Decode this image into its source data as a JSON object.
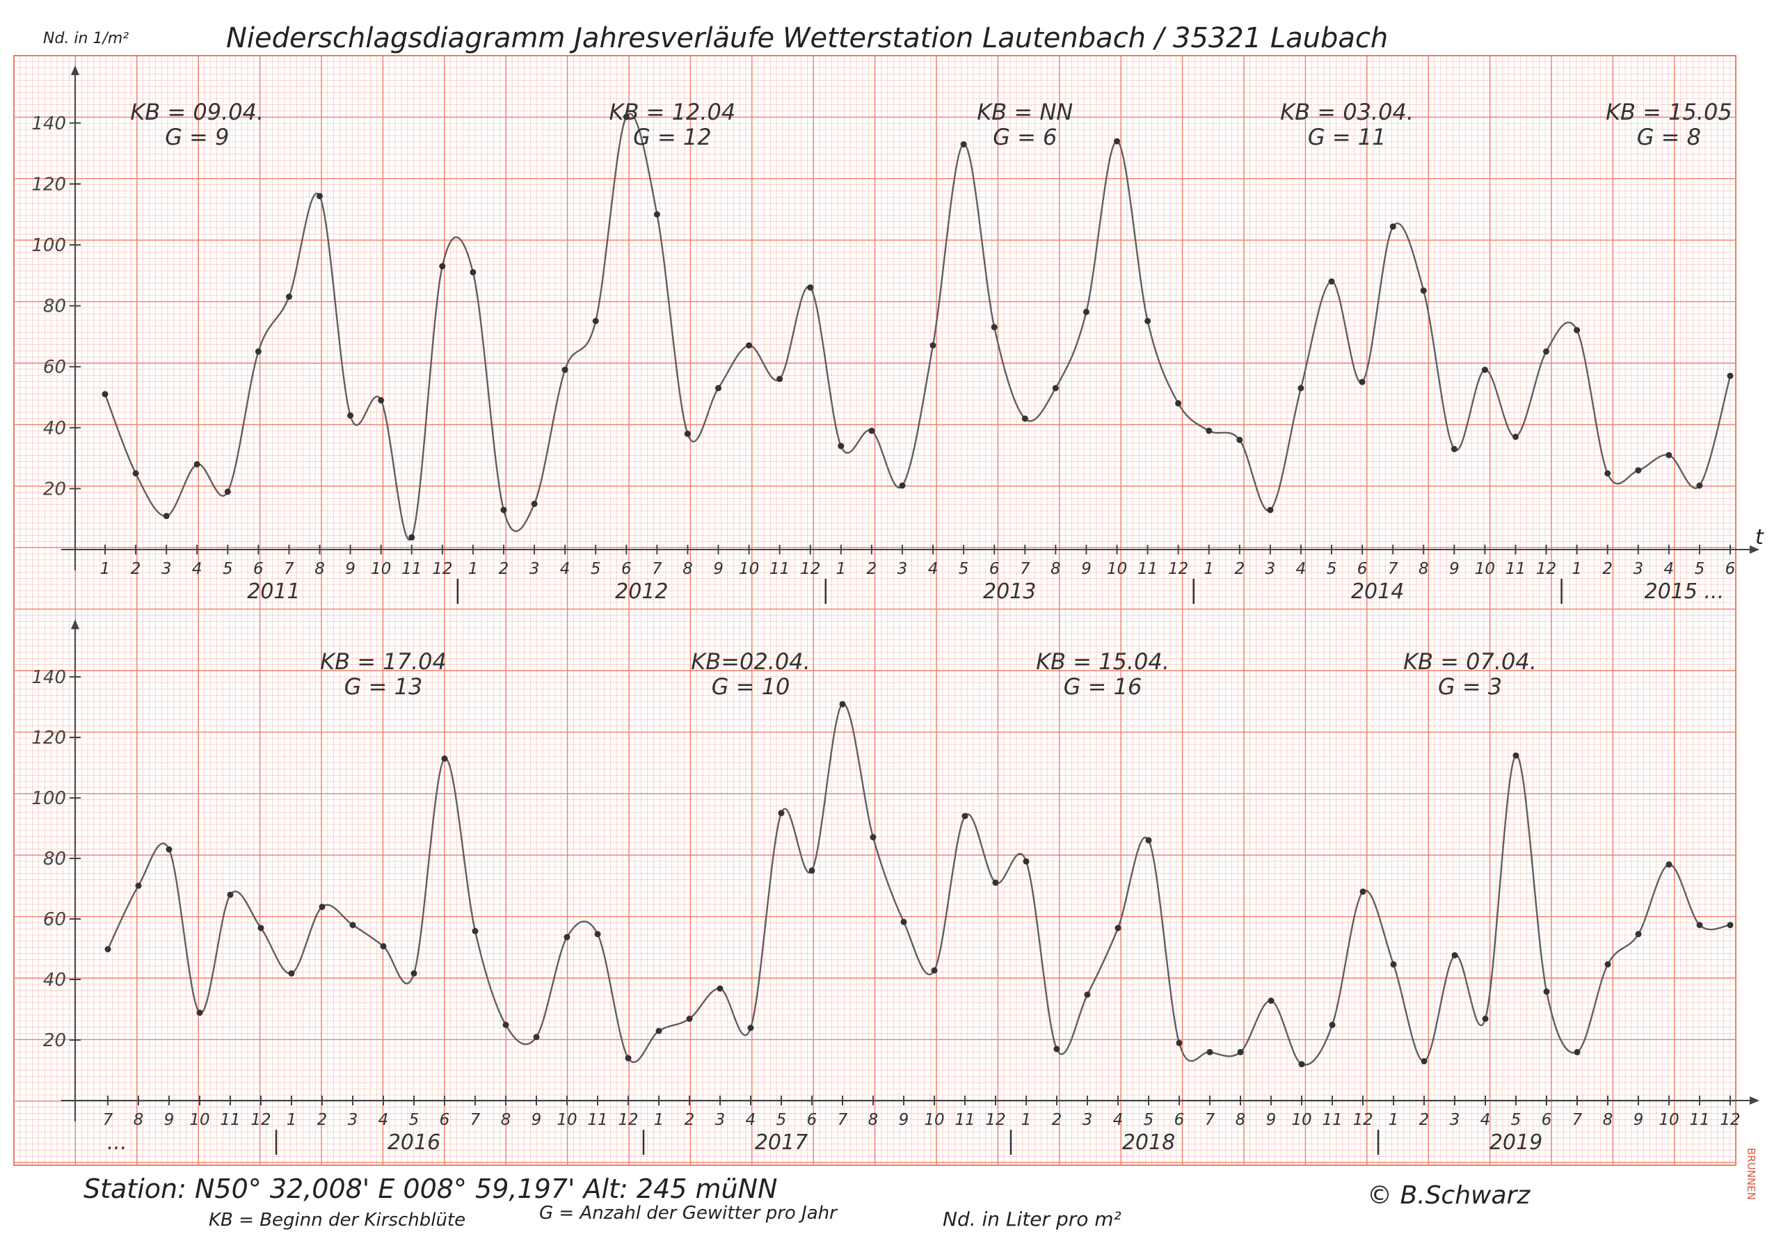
{
  "title": "Niederschlagsdiagramm Jahresverläufe",
  "station_title": "Wetterstation Lautenbach / 35321 Laubach",
  "y_unit": "Nd. in 1/m²",
  "x_axis_symbol": "t",
  "footer": {
    "station": "Station: N50° 32,008'  E 008° 59,197'  Alt: 245 müNN",
    "legend_kb": "KB = Beginn der Kirschblüte",
    "legend_g": "G = Anzahl der Gewitter pro Jahr",
    "units": "Nd. in Liter pro m²",
    "copyright": "© B.Schwarz",
    "paper_brand": "BRUNNEN"
  },
  "colors": {
    "grid": "#f27b66",
    "grid_minor": "#f7b8aa",
    "curve": "#5f5f5f",
    "ink": "#222222"
  },
  "chart_data": [
    {
      "type": "line",
      "panel": "top",
      "x_labels": [
        "1",
        "2",
        "3",
        "4",
        "5",
        "6",
        "7",
        "8",
        "9",
        "10",
        "11",
        "12",
        "1",
        "2",
        "3",
        "4",
        "5",
        "6",
        "7",
        "8",
        "9",
        "10",
        "11",
        "12",
        "1",
        "2",
        "3",
        "4",
        "5",
        "6",
        "7",
        "8",
        "9",
        "10",
        "11",
        "12",
        "1",
        "2",
        "3",
        "4",
        "5",
        "6",
        "7",
        "8",
        "9",
        "10",
        "11",
        "12",
        "1",
        "2",
        "3",
        "4",
        "5",
        "6"
      ],
      "year_labels": [
        {
          "label": "2011",
          "at": 5.5
        },
        {
          "label": "2012",
          "at": 17.5
        },
        {
          "label": "2013",
          "at": 29.5
        },
        {
          "label": "2014",
          "at": 41.5
        },
        {
          "label": "2015 ...",
          "at": 51.5
        }
      ],
      "year_dividers": [
        11.5,
        23.5,
        35.5,
        47.5
      ],
      "yticks": [
        20,
        40,
        60,
        80,
        100,
        120,
        140
      ],
      "ylim": [
        0,
        150
      ],
      "values": [
        51,
        25,
        11,
        28,
        19,
        65,
        83,
        116,
        44,
        49,
        4,
        93,
        91,
        13,
        15,
        59,
        75,
        142,
        110,
        38,
        53,
        67,
        56,
        86,
        34,
        39,
        21,
        67,
        133,
        73,
        43,
        53,
        78,
        134,
        75,
        48,
        39,
        36,
        13,
        53,
        88,
        55,
        106,
        85,
        33,
        59,
        37,
        65,
        72,
        25,
        26,
        31,
        21,
        57
      ],
      "annotations": [
        {
          "text": "KB = 09.04.",
          "line2": "G = 9",
          "at": 3
        },
        {
          "text": "KB = 12.04",
          "line2": "G = 12",
          "at": 18.5
        },
        {
          "text": "KB = NN",
          "line2": "G = 6",
          "at": 30
        },
        {
          "text": "KB = 03.04.",
          "line2": "G = 11",
          "at": 40.5
        },
        {
          "text": "KB = 15.05",
          "line2": "G = 8",
          "at": 51
        }
      ]
    },
    {
      "type": "line",
      "panel": "bottom",
      "x_labels": [
        "7",
        "8",
        "9",
        "10",
        "11",
        "12",
        "1",
        "2",
        "3",
        "4",
        "5",
        "6",
        "7",
        "8",
        "9",
        "10",
        "11",
        "12",
        "1",
        "2",
        "3",
        "4",
        "5",
        "6",
        "7",
        "8",
        "9",
        "10",
        "11",
        "12",
        "1",
        "2",
        "3",
        "4",
        "5",
        "6",
        "7",
        "8",
        "9",
        "10",
        "11",
        "12",
        "1",
        "2",
        "3",
        "4",
        "5",
        "6",
        "7",
        "8",
        "9",
        "10",
        "11",
        "12"
      ],
      "year_labels": [
        {
          "label": "...",
          "at": 0.3
        },
        {
          "label": "2016",
          "at": 10
        },
        {
          "label": "2017",
          "at": 22
        },
        {
          "label": "2018",
          "at": 34
        },
        {
          "label": "2019",
          "at": 46
        }
      ],
      "year_dividers": [
        5.5,
        17.5,
        29.5,
        41.5
      ],
      "yticks": [
        20,
        40,
        60,
        80,
        100,
        120,
        140
      ],
      "ylim": [
        0,
        150
      ],
      "values": [
        50,
        71,
        83,
        29,
        68,
        57,
        42,
        64,
        58,
        51,
        42,
        113,
        56,
        25,
        21,
        54,
        55,
        14,
        23,
        27,
        37,
        24,
        95,
        76,
        131,
        87,
        59,
        43,
        94,
        72,
        79,
        17,
        35,
        57,
        86,
        19,
        16,
        16,
        33,
        12,
        25,
        69,
        45,
        13,
        48,
        27,
        114,
        36,
        16,
        45,
        55,
        78,
        58,
        58
      ],
      "annotations": [
        {
          "text": "KB = 17.04",
          "line2": "G = 13",
          "at": 9
        },
        {
          "text": "KB=02.04.",
          "line2": "G = 10",
          "at": 21
        },
        {
          "text": "KB = 15.04.",
          "line2": "G = 16",
          "at": 32.5
        },
        {
          "text": "KB = 07.04.",
          "line2": "G = 3",
          "at": 44.5
        }
      ]
    }
  ]
}
